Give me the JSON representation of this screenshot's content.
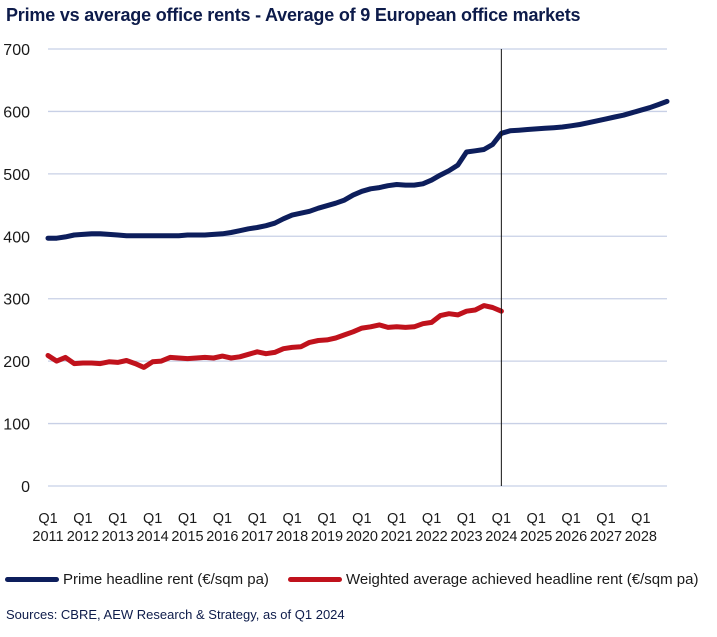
{
  "colors": {
    "prime": "#0d1e5c",
    "average": "#c0121c",
    "grid": "#c8d0e6",
    "divider": "#111111"
  },
  "chart_data": {
    "type": "line",
    "title": "Prime vs average office rents - Average of 9 European office markets",
    "ylim": [
      0,
      700
    ],
    "yticks": [
      0,
      100,
      200,
      300,
      400,
      500,
      600,
      700
    ],
    "ytick_labels": [
      "0",
      "100",
      "200",
      "300",
      "400",
      "500",
      "600",
      "700"
    ],
    "xlim": [
      2011.0,
      2028.75
    ],
    "xticks": [
      {
        "year": 2011,
        "q": "Q1",
        "y": "2011"
      },
      {
        "year": 2012,
        "q": "Q1",
        "y": "2012"
      },
      {
        "year": 2013,
        "q": "Q1",
        "y": "2013"
      },
      {
        "year": 2014,
        "q": "Q1",
        "y": "2014"
      },
      {
        "year": 2015,
        "q": "Q1",
        "y": "2015"
      },
      {
        "year": 2016,
        "q": "Q1",
        "y": "2016"
      },
      {
        "year": 2017,
        "q": "Q1",
        "y": "2017"
      },
      {
        "year": 2018,
        "q": "Q1",
        "y": "2018"
      },
      {
        "year": 2019,
        "q": "Q1",
        "y": "2019"
      },
      {
        "year": 2020,
        "q": "Q1",
        "y": "2020"
      },
      {
        "year": 2021,
        "q": "Q1",
        "y": "2021"
      },
      {
        "year": 2022,
        "q": "Q1",
        "y": "2022"
      },
      {
        "year": 2023,
        "q": "Q1",
        "y": "2023"
      },
      {
        "year": 2024,
        "q": "Q1",
        "y": "2024"
      },
      {
        "year": 2025,
        "q": "Q1",
        "y": "2025"
      },
      {
        "year": 2026,
        "q": "Q1",
        "y": "2026"
      },
      {
        "year": 2027,
        "q": "Q1",
        "y": "2027"
      },
      {
        "year": 2028,
        "q": "Q1",
        "y": "2028"
      }
    ],
    "divider_at": 2024.0,
    "grid": true,
    "legend_placement": "bottom",
    "series": [
      {
        "name": "Prime headline rent (€/sqm pa)",
        "color_key": "prime",
        "points": [
          [
            2011.0,
            397
          ],
          [
            2011.25,
            397
          ],
          [
            2011.5,
            399
          ],
          [
            2011.75,
            402
          ],
          [
            2012.0,
            403
          ],
          [
            2012.25,
            404
          ],
          [
            2012.5,
            404
          ],
          [
            2012.75,
            403
          ],
          [
            2013.0,
            402
          ],
          [
            2013.25,
            401
          ],
          [
            2013.5,
            401
          ],
          [
            2013.75,
            401
          ],
          [
            2014.0,
            401
          ],
          [
            2014.25,
            401
          ],
          [
            2014.5,
            401
          ],
          [
            2014.75,
            401
          ],
          [
            2015.0,
            402
          ],
          [
            2015.25,
            402
          ],
          [
            2015.5,
            402
          ],
          [
            2015.75,
            403
          ],
          [
            2016.0,
            404
          ],
          [
            2016.25,
            406
          ],
          [
            2016.5,
            409
          ],
          [
            2016.75,
            412
          ],
          [
            2017.0,
            414
          ],
          [
            2017.25,
            417
          ],
          [
            2017.5,
            421
          ],
          [
            2017.75,
            428
          ],
          [
            2018.0,
            434
          ],
          [
            2018.25,
            437
          ],
          [
            2018.5,
            440
          ],
          [
            2018.75,
            445
          ],
          [
            2019.0,
            449
          ],
          [
            2019.25,
            453
          ],
          [
            2019.5,
            458
          ],
          [
            2019.75,
            466
          ],
          [
            2020.0,
            472
          ],
          [
            2020.25,
            476
          ],
          [
            2020.5,
            478
          ],
          [
            2020.75,
            481
          ],
          [
            2021.0,
            483
          ],
          [
            2021.25,
            482
          ],
          [
            2021.5,
            482
          ],
          [
            2021.75,
            484
          ],
          [
            2022.0,
            490
          ],
          [
            2022.25,
            498
          ],
          [
            2022.5,
            505
          ],
          [
            2022.75,
            514
          ],
          [
            2023.0,
            535
          ],
          [
            2023.25,
            537
          ],
          [
            2023.5,
            539
          ],
          [
            2023.75,
            547
          ],
          [
            2024.0,
            565
          ],
          [
            2024.25,
            569
          ],
          [
            2024.5,
            570
          ],
          [
            2024.75,
            571
          ],
          [
            2025.0,
            572
          ],
          [
            2025.25,
            573
          ],
          [
            2025.5,
            574
          ],
          [
            2025.75,
            575
          ],
          [
            2026.0,
            577
          ],
          [
            2026.25,
            579
          ],
          [
            2026.5,
            582
          ],
          [
            2026.75,
            585
          ],
          [
            2027.0,
            588
          ],
          [
            2027.25,
            591
          ],
          [
            2027.5,
            594
          ],
          [
            2027.75,
            598
          ],
          [
            2028.0,
            602
          ],
          [
            2028.25,
            606
          ],
          [
            2028.5,
            611
          ],
          [
            2028.75,
            616
          ]
        ]
      },
      {
        "name": "Weighted average achieved headline rent (€/sqm pa)",
        "color_key": "average",
        "points": [
          [
            2011.0,
            209
          ],
          [
            2011.25,
            200
          ],
          [
            2011.5,
            206
          ],
          [
            2011.75,
            196
          ],
          [
            2012.0,
            197
          ],
          [
            2012.25,
            197
          ],
          [
            2012.5,
            196
          ],
          [
            2012.75,
            199
          ],
          [
            2013.0,
            198
          ],
          [
            2013.25,
            201
          ],
          [
            2013.5,
            196
          ],
          [
            2013.75,
            190
          ],
          [
            2014.0,
            199
          ],
          [
            2014.25,
            200
          ],
          [
            2014.5,
            206
          ],
          [
            2014.75,
            205
          ],
          [
            2015.0,
            204
          ],
          [
            2015.25,
            205
          ],
          [
            2015.5,
            206
          ],
          [
            2015.75,
            205
          ],
          [
            2016.0,
            208
          ],
          [
            2016.25,
            205
          ],
          [
            2016.5,
            207
          ],
          [
            2016.75,
            211
          ],
          [
            2017.0,
            215
          ],
          [
            2017.25,
            212
          ],
          [
            2017.5,
            214
          ],
          [
            2017.75,
            220
          ],
          [
            2018.0,
            222
          ],
          [
            2018.25,
            223
          ],
          [
            2018.5,
            230
          ],
          [
            2018.75,
            233
          ],
          [
            2019.0,
            234
          ],
          [
            2019.25,
            237
          ],
          [
            2019.5,
            242
          ],
          [
            2019.75,
            247
          ],
          [
            2020.0,
            253
          ],
          [
            2020.25,
            255
          ],
          [
            2020.5,
            258
          ],
          [
            2020.75,
            254
          ],
          [
            2021.0,
            255
          ],
          [
            2021.25,
            254
          ],
          [
            2021.5,
            255
          ],
          [
            2021.75,
            260
          ],
          [
            2022.0,
            262
          ],
          [
            2022.25,
            273
          ],
          [
            2022.5,
            276
          ],
          [
            2022.75,
            274
          ],
          [
            2023.0,
            280
          ],
          [
            2023.25,
            282
          ],
          [
            2023.5,
            289
          ],
          [
            2023.75,
            286
          ],
          [
            2024.0,
            280
          ]
        ]
      }
    ],
    "source": "Sources: CBRE, AEW Research & Strategy, as of Q1 2024"
  }
}
